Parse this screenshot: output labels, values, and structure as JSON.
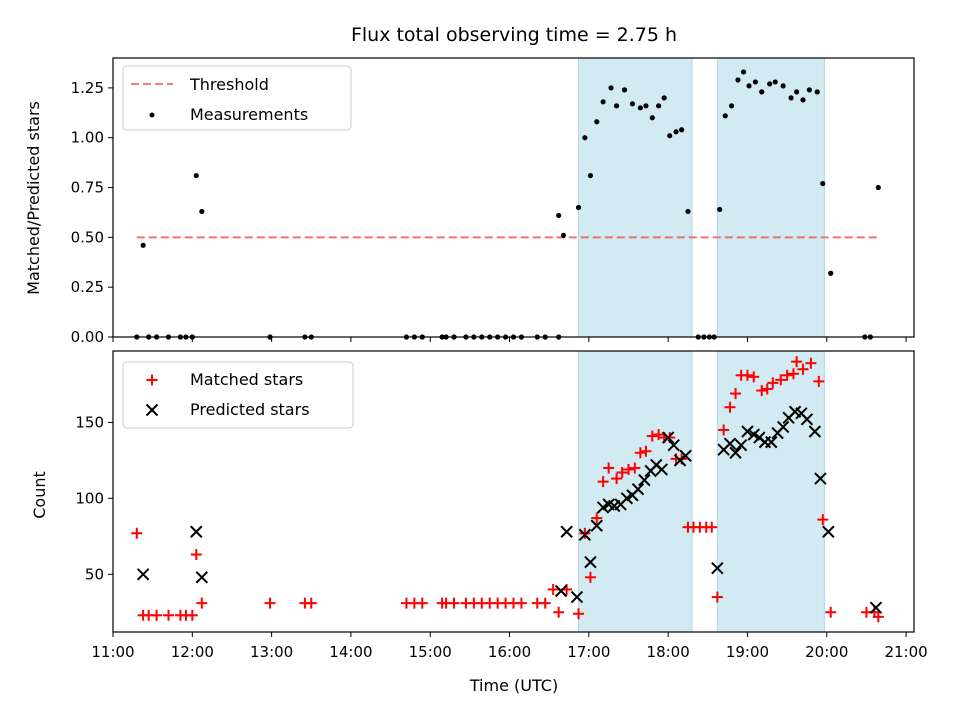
{
  "figure": {
    "title": "Flux total observing time = 2.75 h"
  },
  "chart_data": [
    {
      "type": "scatter",
      "panel": "top",
      "ylabel": "Matched/Predicted stars",
      "xlim": [
        11.0,
        21.1
      ],
      "ylim": [
        0.0,
        1.4
      ],
      "yticks": [
        0.0,
        0.25,
        0.5,
        0.75,
        1.0,
        1.25
      ],
      "yticklabels": [
        "0.00",
        "0.25",
        "0.50",
        "0.75",
        "1.00",
        "1.25"
      ],
      "legend_position": "top-left",
      "legend": [
        {
          "label": "Threshold",
          "style": "dashed-line",
          "color": "#f08080"
        },
        {
          "label": "Measurements",
          "style": "dot",
          "color": "#000000"
        }
      ],
      "threshold": {
        "value": 0.5,
        "x_start": 11.3,
        "x_end": 20.65,
        "color": "#f07070"
      },
      "shaded_regions": [
        [
          16.87,
          18.3
        ],
        [
          18.62,
          19.97
        ]
      ],
      "series": [
        {
          "name": "Measurements",
          "points": [
            [
              11.3,
              0
            ],
            [
              11.38,
              0.46
            ],
            [
              11.45,
              0
            ],
            [
              11.55,
              0
            ],
            [
              11.7,
              0
            ],
            [
              11.85,
              0
            ],
            [
              11.92,
              0
            ],
            [
              12.0,
              0
            ],
            [
              12.05,
              0.81
            ],
            [
              12.12,
              0.63
            ],
            [
              12.98,
              0
            ],
            [
              13.42,
              0
            ],
            [
              13.5,
              0
            ],
            [
              14.7,
              0
            ],
            [
              14.8,
              0
            ],
            [
              14.9,
              0
            ],
            [
              15.15,
              0
            ],
            [
              15.2,
              0
            ],
            [
              15.3,
              0
            ],
            [
              15.45,
              0
            ],
            [
              15.55,
              0
            ],
            [
              15.65,
              0
            ],
            [
              15.75,
              0
            ],
            [
              15.85,
              0
            ],
            [
              15.95,
              0
            ],
            [
              16.05,
              0
            ],
            [
              16.15,
              0
            ],
            [
              16.35,
              0
            ],
            [
              16.45,
              0
            ],
            [
              16.62,
              0
            ],
            [
              16.62,
              0.61
            ],
            [
              16.68,
              0.51
            ],
            [
              16.87,
              0.65
            ],
            [
              16.95,
              1.0
            ],
            [
              17.02,
              0.81
            ],
            [
              17.1,
              1.08
            ],
            [
              17.18,
              1.18
            ],
            [
              17.28,
              1.25
            ],
            [
              17.35,
              1.16
            ],
            [
              17.45,
              1.24
            ],
            [
              17.55,
              1.17
            ],
            [
              17.65,
              1.15
            ],
            [
              17.72,
              1.16
            ],
            [
              17.8,
              1.1
            ],
            [
              17.88,
              1.16
            ],
            [
              17.95,
              1.2
            ],
            [
              18.02,
              1.01
            ],
            [
              18.1,
              1.03
            ],
            [
              18.17,
              1.04
            ],
            [
              18.25,
              0.63
            ],
            [
              18.38,
              0
            ],
            [
              18.45,
              0
            ],
            [
              18.52,
              0
            ],
            [
              18.58,
              0
            ],
            [
              18.65,
              0.64
            ],
            [
              18.72,
              1.11
            ],
            [
              18.8,
              1.16
            ],
            [
              18.88,
              1.29
            ],
            [
              18.95,
              1.33
            ],
            [
              19.02,
              1.26
            ],
            [
              19.1,
              1.28
            ],
            [
              19.18,
              1.23
            ],
            [
              19.28,
              1.27
            ],
            [
              19.35,
              1.28
            ],
            [
              19.45,
              1.26
            ],
            [
              19.55,
              1.2
            ],
            [
              19.62,
              1.23
            ],
            [
              19.7,
              1.19
            ],
            [
              19.78,
              1.24
            ],
            [
              19.88,
              1.23
            ],
            [
              19.95,
              0.77
            ],
            [
              20.05,
              0.32
            ],
            [
              20.48,
              0
            ],
            [
              20.55,
              0
            ],
            [
              20.65,
              0.75
            ]
          ]
        }
      ]
    },
    {
      "type": "scatter",
      "panel": "bottom",
      "xlabel": "Time (UTC)",
      "ylabel": "Count",
      "xlim": [
        11.0,
        21.1
      ],
      "ylim": [
        12,
        197
      ],
      "xticks": [
        11,
        12,
        13,
        14,
        15,
        16,
        17,
        18,
        19,
        20,
        21
      ],
      "xticklabels": [
        "11:00",
        "12:00",
        "13:00",
        "14:00",
        "15:00",
        "16:00",
        "17:00",
        "18:00",
        "19:00",
        "20:00",
        "21:00"
      ],
      "yticks": [
        50,
        100,
        150
      ],
      "yticklabels": [
        "50",
        "100",
        "150"
      ],
      "legend_position": "top-left",
      "legend": [
        {
          "label": "Matched stars",
          "style": "plus",
          "color": "#ff0000"
        },
        {
          "label": "Predicted stars",
          "style": "x",
          "color": "#000000"
        }
      ],
      "shaded_regions": [
        [
          16.87,
          18.3
        ],
        [
          18.62,
          19.97
        ]
      ],
      "series": [
        {
          "name": "Matched stars",
          "marker": "plus",
          "color": "#ff0000",
          "points": [
            [
              11.3,
              77
            ],
            [
              11.38,
              23
            ],
            [
              11.45,
              23
            ],
            [
              11.55,
              23
            ],
            [
              11.7,
              23
            ],
            [
              11.85,
              23
            ],
            [
              11.92,
              23
            ],
            [
              12.0,
              23
            ],
            [
              12.05,
              63
            ],
            [
              12.12,
              31
            ],
            [
              12.98,
              31
            ],
            [
              13.42,
              31
            ],
            [
              13.5,
              31
            ],
            [
              14.7,
              31
            ],
            [
              14.8,
              31
            ],
            [
              14.9,
              31
            ],
            [
              15.15,
              31
            ],
            [
              15.2,
              31
            ],
            [
              15.3,
              31
            ],
            [
              15.45,
              31
            ],
            [
              15.55,
              31
            ],
            [
              15.65,
              31
            ],
            [
              15.75,
              31
            ],
            [
              15.85,
              31
            ],
            [
              15.95,
              31
            ],
            [
              16.05,
              31
            ],
            [
              16.15,
              31
            ],
            [
              16.35,
              31
            ],
            [
              16.45,
              31
            ],
            [
              16.55,
              40
            ],
            [
              16.62,
              25
            ],
            [
              16.72,
              40
            ],
            [
              16.87,
              24
            ],
            [
              16.95,
              77
            ],
            [
              17.02,
              48
            ],
            [
              17.1,
              87
            ],
            [
              17.18,
              111
            ],
            [
              17.25,
              120
            ],
            [
              17.35,
              113
            ],
            [
              17.42,
              117
            ],
            [
              17.5,
              119
            ],
            [
              17.58,
              120
            ],
            [
              17.65,
              130
            ],
            [
              17.72,
              131
            ],
            [
              17.8,
              141
            ],
            [
              17.88,
              142
            ],
            [
              17.95,
              140
            ],
            [
              18.02,
              140
            ],
            [
              18.1,
              126
            ],
            [
              18.17,
              126
            ],
            [
              18.25,
              81
            ],
            [
              18.32,
              81
            ],
            [
              18.4,
              81
            ],
            [
              18.48,
              81
            ],
            [
              18.55,
              81
            ],
            [
              18.62,
              35
            ],
            [
              18.7,
              145
            ],
            [
              18.78,
              160
            ],
            [
              18.85,
              169
            ],
            [
              18.92,
              181
            ],
            [
              19.0,
              181
            ],
            [
              19.08,
              180
            ],
            [
              19.18,
              171
            ],
            [
              19.25,
              172
            ],
            [
              19.32,
              176
            ],
            [
              19.42,
              178
            ],
            [
              19.5,
              181
            ],
            [
              19.58,
              182
            ],
            [
              19.62,
              190
            ],
            [
              19.7,
              185
            ],
            [
              19.8,
              189
            ],
            [
              19.9,
              177
            ],
            [
              19.95,
              86
            ],
            [
              20.05,
              25
            ],
            [
              20.5,
              25
            ],
            [
              20.6,
              25
            ],
            [
              20.65,
              22
            ]
          ]
        },
        {
          "name": "Predicted stars",
          "marker": "x",
          "color": "#000000",
          "points": [
            [
              11.38,
              50
            ],
            [
              12.05,
              78
            ],
            [
              12.12,
              48
            ],
            [
              16.65,
              39
            ],
            [
              16.72,
              78
            ],
            [
              16.85,
              35
            ],
            [
              16.95,
              76
            ],
            [
              17.02,
              58
            ],
            [
              17.1,
              82
            ],
            [
              17.18,
              94
            ],
            [
              17.25,
              96
            ],
            [
              17.32,
              95
            ],
            [
              17.4,
              96
            ],
            [
              17.48,
              100
            ],
            [
              17.55,
              102
            ],
            [
              17.62,
              106
            ],
            [
              17.7,
              112
            ],
            [
              17.78,
              118
            ],
            [
              17.85,
              122
            ],
            [
              17.92,
              119
            ],
            [
              18.0,
              140
            ],
            [
              18.07,
              135
            ],
            [
              18.15,
              125
            ],
            [
              18.22,
              128
            ],
            [
              18.62,
              54
            ],
            [
              18.7,
              132
            ],
            [
              18.78,
              136
            ],
            [
              18.85,
              130
            ],
            [
              18.92,
              135
            ],
            [
              19.0,
              144
            ],
            [
              19.08,
              142
            ],
            [
              19.15,
              140
            ],
            [
              19.22,
              137
            ],
            [
              19.3,
              137
            ],
            [
              19.38,
              143
            ],
            [
              19.45,
              147
            ],
            [
              19.52,
              153
            ],
            [
              19.6,
              157
            ],
            [
              19.68,
              156
            ],
            [
              19.75,
              152
            ],
            [
              19.85,
              144
            ],
            [
              19.92,
              113
            ],
            [
              20.02,
              78
            ],
            [
              20.62,
              28
            ]
          ]
        }
      ]
    }
  ]
}
